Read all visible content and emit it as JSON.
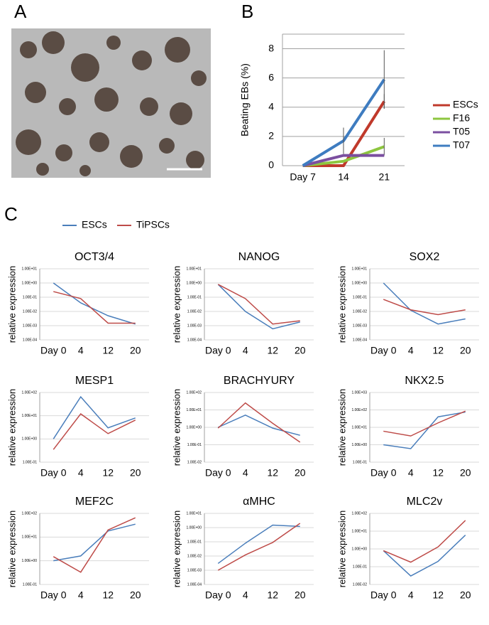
{
  "panel_labels": [
    "A",
    "B",
    "C"
  ],
  "chart_data": [
    {
      "type": "line",
      "ylabel": "Beating EBs (%)",
      "categories": [
        "Day 7",
        "14",
        "21"
      ],
      "ylim": [
        0,
        9
      ],
      "yticks": [
        0,
        2,
        4,
        6,
        8
      ],
      "grid": true,
      "log_scale": false,
      "series": [
        {
          "name": "ESCs",
          "color": "#c0392b",
          "values": [
            0,
            0,
            4.4
          ],
          "errors": [
            null,
            null,
            0.5
          ]
        },
        {
          "name": "F16",
          "color": "#8dc63f",
          "values": [
            0,
            0.3,
            1.3
          ],
          "errors": [
            null,
            null,
            0.6
          ]
        },
        {
          "name": "T05",
          "color": "#7b4fa0",
          "values": [
            0,
            0.7,
            0.7
          ],
          "errors": [
            null,
            null,
            null
          ]
        },
        {
          "name": "T07",
          "color": "#3e7cc0",
          "values": [
            0,
            1.7,
            5.9
          ],
          "errors": [
            null,
            0.9,
            2
          ]
        }
      ]
    },
    {
      "type": "line",
      "title": "OCT3/4",
      "ylabel": "relative expression",
      "categories": [
        "Day 0",
        "4",
        "12",
        "20"
      ],
      "log_scale": true,
      "grid": true,
      "ylim": [
        0.0001,
        10
      ],
      "yticks": [
        {
          "value": 0.0001,
          "label": "1.00E-04"
        },
        {
          "value": 0.001,
          "label": "1.00E-03"
        },
        {
          "value": 0.01,
          "label": "1.00E-02"
        },
        {
          "value": 0.1,
          "label": "1.00E-01"
        },
        {
          "value": 1,
          "label": "1.00E+00"
        },
        {
          "value": 10,
          "label": "1.00E+01"
        }
      ],
      "series": [
        {
          "name": "ESCs",
          "color": "#4a7ebb",
          "values": [
            1,
            0.04,
            0.005,
            0.0013
          ]
        },
        {
          "name": "TiPSCs",
          "color": "#be4b48",
          "values": [
            0.25,
            0.08,
            0.0015,
            0.0015
          ]
        }
      ]
    },
    {
      "type": "line",
      "title": "NANOG",
      "ylabel": "relative expression",
      "categories": [
        "Day 0",
        "4",
        "12",
        "20"
      ],
      "log_scale": true,
      "grid": true,
      "ylim": [
        0.0001,
        10
      ],
      "yticks": [
        {
          "value": 0.0001,
          "label": "1.00E-04"
        },
        {
          "value": 0.001,
          "label": "1.00E-03"
        },
        {
          "value": 0.01,
          "label": "1.00E-02"
        },
        {
          "value": 0.1,
          "label": "1.00E-01"
        },
        {
          "value": 1,
          "label": "1.00E+00"
        },
        {
          "value": 10,
          "label": "1.00E+01"
        }
      ],
      "series": [
        {
          "name": "ESCs",
          "color": "#4a7ebb",
          "values": [
            0.8,
            0.01,
            0.0006,
            0.0018
          ]
        },
        {
          "name": "TiPSCs",
          "color": "#be4b48",
          "values": [
            0.8,
            0.08,
            0.0013,
            0.0022
          ]
        }
      ]
    },
    {
      "type": "line",
      "title": "SOX2",
      "ylabel": "relative expression",
      "categories": [
        "Day 0",
        "4",
        "12",
        "20"
      ],
      "log_scale": true,
      "grid": true,
      "ylim": [
        0.0001,
        10
      ],
      "yticks": [
        {
          "value": 0.0001,
          "label": "1.00E-04"
        },
        {
          "value": 0.001,
          "label": "1.00E-03"
        },
        {
          "value": 0.01,
          "label": "1.00E-02"
        },
        {
          "value": 0.1,
          "label": "1.00E-01"
        },
        {
          "value": 1,
          "label": "1.00E+00"
        },
        {
          "value": 10,
          "label": "1.00E+01"
        }
      ],
      "series": [
        {
          "name": "ESCs",
          "color": "#4a7ebb",
          "values": [
            1,
            0.012,
            0.0013,
            0.003
          ]
        },
        {
          "name": "TiPSCs",
          "color": "#be4b48",
          "values": [
            0.07,
            0.013,
            0.006,
            0.013
          ]
        }
      ]
    },
    {
      "type": "line",
      "title": "MESP1",
      "ylabel": "relative expression",
      "categories": [
        "Day 0",
        "4",
        "12",
        "20"
      ],
      "log_scale": true,
      "grid": true,
      "ylim": [
        0.1,
        100
      ],
      "yticks": [
        {
          "value": 0.1,
          "label": "1.00E-01"
        },
        {
          "value": 1,
          "label": "1.00E+00"
        },
        {
          "value": 10,
          "label": "1.00E+01"
        },
        {
          "value": 100,
          "label": "1.00E+02"
        }
      ],
      "series": [
        {
          "name": "ESCs",
          "color": "#4a7ebb",
          "values": [
            1,
            65,
            3,
            8
          ]
        },
        {
          "name": "TiPSCs",
          "color": "#be4b48",
          "values": [
            0.35,
            12,
            1.7,
            6.5
          ]
        }
      ]
    },
    {
      "type": "line",
      "title": "BRACHYURY",
      "ylabel": "relative expression",
      "categories": [
        "Day 0",
        "4",
        "12",
        "20"
      ],
      "log_scale": true,
      "grid": true,
      "ylim": [
        0.01,
        100
      ],
      "yticks": [
        {
          "value": 0.01,
          "label": "1.00E-02"
        },
        {
          "value": 0.1,
          "label": "1.00E-01"
        },
        {
          "value": 1,
          "label": "1.00E+00"
        },
        {
          "value": 10,
          "label": "1.00E+01"
        },
        {
          "value": 100,
          "label": "1.00E+02"
        }
      ],
      "series": [
        {
          "name": "ESCs",
          "color": "#4a7ebb",
          "values": [
            1,
            5,
            0.9,
            0.35
          ]
        },
        {
          "name": "TiPSCs",
          "color": "#be4b48",
          "values": [
            0.9,
            25,
            1.7,
            0.14
          ]
        }
      ]
    },
    {
      "type": "line",
      "title": "NKX2.5",
      "ylabel": "relative expression",
      "categories": [
        "Day 0",
        "4",
        "12",
        "20"
      ],
      "log_scale": true,
      "grid": true,
      "ylim": [
        0.1,
        1000
      ],
      "yticks": [
        {
          "value": 0.1,
          "label": "1.00E-01"
        },
        {
          "value": 1,
          "label": "1.00E+00"
        },
        {
          "value": 10,
          "label": "1.00E+01"
        },
        {
          "value": 100,
          "label": "1.00E+02"
        },
        {
          "value": 1000,
          "label": "1.00E+03"
        }
      ],
      "series": [
        {
          "name": "ESCs",
          "color": "#4a7ebb",
          "values": [
            1,
            0.6,
            40,
            75
          ]
        },
        {
          "name": "TiPSCs",
          "color": "#be4b48",
          "values": [
            6,
            3.2,
            18,
            85
          ]
        }
      ]
    },
    {
      "type": "line",
      "title": "MEF2C",
      "ylabel": "relative expression",
      "categories": [
        "Day 0",
        "4",
        "12",
        "20"
      ],
      "log_scale": true,
      "grid": true,
      "ylim": [
        0.1,
        100
      ],
      "yticks": [
        {
          "value": 0.1,
          "label": "1.00E-01"
        },
        {
          "value": 1,
          "label": "1.00E+00"
        },
        {
          "value": 10,
          "label": "1.00E+01"
        },
        {
          "value": 100,
          "label": "1.00E+02"
        }
      ],
      "series": [
        {
          "name": "ESCs",
          "color": "#4a7ebb",
          "values": [
            1,
            1.6,
            18,
            35
          ]
        },
        {
          "name": "TiPSCs",
          "color": "#be4b48",
          "values": [
            1.5,
            0.33,
            20,
            65
          ]
        }
      ]
    },
    {
      "type": "line",
      "title": "αMHC",
      "ylabel": "relative expression",
      "categories": [
        "Day 0",
        "4",
        "12",
        "20"
      ],
      "log_scale": true,
      "grid": true,
      "ylim": [
        0.0001,
        10
      ],
      "yticks": [
        {
          "value": 0.0001,
          "label": "1.00E-04"
        },
        {
          "value": 0.001,
          "label": "1.00E-03"
        },
        {
          "value": 0.01,
          "label": "1.00E-02"
        },
        {
          "value": 0.1,
          "label": "1.00E-01"
        },
        {
          "value": 1,
          "label": "1.00E+00"
        },
        {
          "value": 10,
          "label": "1.00E+01"
        }
      ],
      "series": [
        {
          "name": "ESCs",
          "color": "#4a7ebb",
          "values": [
            0.003,
            0.08,
            1.5,
            1.2
          ]
        },
        {
          "name": "TiPSCs",
          "color": "#be4b48",
          "values": [
            0.001,
            0.012,
            0.09,
            2
          ]
        }
      ]
    },
    {
      "type": "line",
      "title": "MLC2v",
      "ylabel": "relative expression",
      "categories": [
        "Day 0",
        "4",
        "12",
        "20"
      ],
      "log_scale": true,
      "grid": true,
      "ylim": [
        0.01,
        100
      ],
      "yticks": [
        {
          "value": 0.01,
          "label": "1.00E-02"
        },
        {
          "value": 0.1,
          "label": "1.00E-01"
        },
        {
          "value": 1,
          "label": "1.00E+00"
        },
        {
          "value": 10,
          "label": "1.00E+01"
        },
        {
          "value": 100,
          "label": "1.00E+02"
        }
      ],
      "series": [
        {
          "name": "ESCs",
          "color": "#4a7ebb",
          "values": [
            0.8,
            0.03,
            0.2,
            6
          ]
        },
        {
          "name": "TiPSCs",
          "color": "#be4b48",
          "values": [
            0.8,
            0.18,
            1.3,
            40
          ]
        }
      ]
    }
  ]
}
